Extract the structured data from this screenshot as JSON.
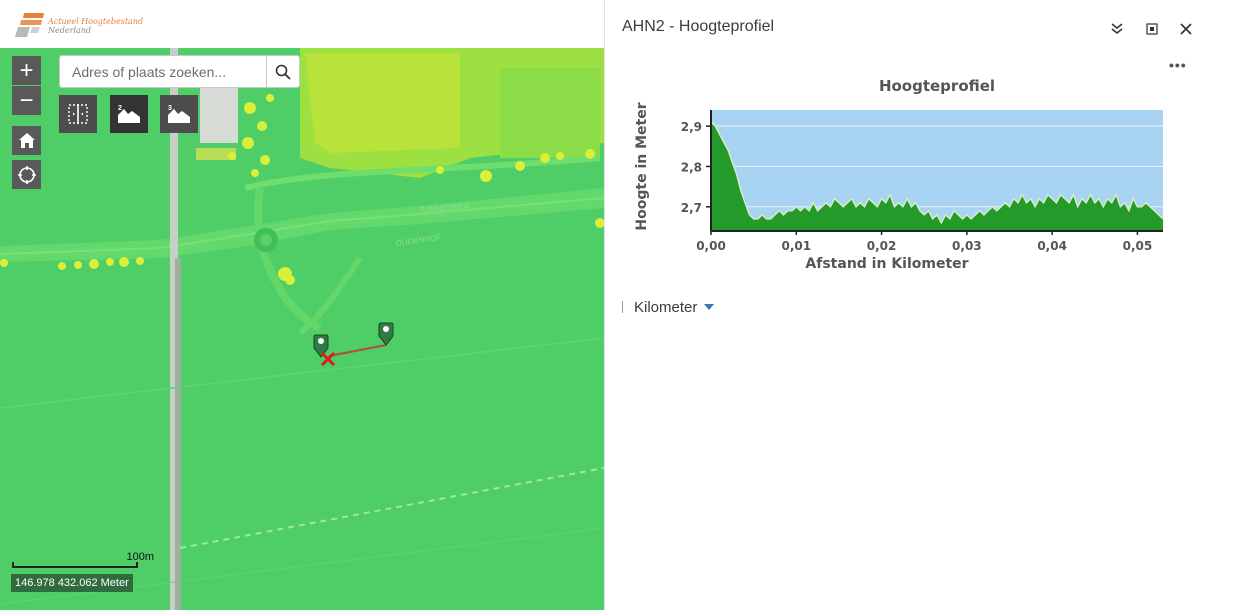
{
  "header": {
    "logo_line1": "Actueel Hoogtebestand",
    "logo_line2": "Nederland"
  },
  "map": {
    "zoom_in_label": "+",
    "zoom_out_label": "−",
    "search": {
      "placeholder": "Adres of plaats zoeken...",
      "value": ""
    },
    "tools": {
      "profile2_badge": "2",
      "profile3_badge": "3"
    },
    "street_labels": [
      "TUNNELWEG",
      "OUDENHOF"
    ],
    "scalebar_label": "100m",
    "coordinates": "146.978 432.062 Meter",
    "icons": [
      "plus-icon",
      "minus-icon",
      "home-icon",
      "locate-icon",
      "search-icon",
      "swipe-icon",
      "profile-2d-icon",
      "profile-3d-icon",
      "location-pin-icon",
      "x-marker-icon"
    ]
  },
  "panel": {
    "title": "AHN2 - Hoogteprofiel",
    "more_label": "•••",
    "unit_value": "Kilometer",
    "colors": {
      "fill": "#239a2a",
      "sky": "#a9d3f2",
      "line": "#d6f0c2"
    }
  },
  "chart_data": {
    "type": "area",
    "title": "Hoogteprofiel",
    "xlabel": "Afstand in Kilometer",
    "ylabel": "Hoogte in Meter",
    "xlim": [
      0,
      0.053
    ],
    "ylim": [
      2.64,
      2.94
    ],
    "x_ticks": [
      0.0,
      0.01,
      0.02,
      0.03,
      0.04,
      0.05
    ],
    "x_tick_labels": [
      "0,00",
      "0,01",
      "0,02",
      "0,03",
      "0,04",
      "0,05"
    ],
    "y_ticks": [
      2.7,
      2.8,
      2.9
    ],
    "y_tick_labels": [
      "2,7",
      "2,8",
      "2,9"
    ],
    "grid": true,
    "x": [
      0.0,
      0.0005,
      0.001,
      0.0015,
      0.002,
      0.0025,
      0.003,
      0.0035,
      0.004,
      0.0045,
      0.005,
      0.0055,
      0.006,
      0.0065,
      0.007,
      0.0075,
      0.008,
      0.0085,
      0.009,
      0.0095,
      0.01,
      0.0105,
      0.011,
      0.0115,
      0.012,
      0.0125,
      0.013,
      0.0135,
      0.014,
      0.0145,
      0.015,
      0.0155,
      0.016,
      0.0165,
      0.017,
      0.0175,
      0.018,
      0.0185,
      0.019,
      0.0195,
      0.02,
      0.0205,
      0.021,
      0.0215,
      0.022,
      0.0225,
      0.023,
      0.0235,
      0.024,
      0.0245,
      0.025,
      0.0255,
      0.026,
      0.0265,
      0.027,
      0.0275,
      0.028,
      0.0285,
      0.029,
      0.0295,
      0.03,
      0.0305,
      0.031,
      0.0315,
      0.032,
      0.0325,
      0.033,
      0.0335,
      0.034,
      0.0345,
      0.035,
      0.0355,
      0.036,
      0.0365,
      0.037,
      0.0375,
      0.038,
      0.0385,
      0.039,
      0.0395,
      0.04,
      0.0405,
      0.041,
      0.0415,
      0.042,
      0.0425,
      0.043,
      0.0435,
      0.044,
      0.0445,
      0.045,
      0.0455,
      0.046,
      0.0465,
      0.047,
      0.0475,
      0.048,
      0.0485,
      0.049,
      0.0495,
      0.05,
      0.0505,
      0.051,
      0.0515,
      0.052,
      0.0525,
      0.053
    ],
    "series": [
      {
        "values": [
          2.91,
          2.9,
          2.88,
          2.86,
          2.84,
          2.81,
          2.78,
          2.74,
          2.71,
          2.68,
          2.67,
          2.67,
          2.68,
          2.67,
          2.67,
          2.68,
          2.69,
          2.68,
          2.69,
          2.69,
          2.7,
          2.69,
          2.7,
          2.69,
          2.71,
          2.69,
          2.7,
          2.71,
          2.7,
          2.72,
          2.71,
          2.7,
          2.71,
          2.72,
          2.7,
          2.71,
          2.7,
          2.72,
          2.71,
          2.7,
          2.72,
          2.71,
          2.73,
          2.7,
          2.71,
          2.7,
          2.72,
          2.7,
          2.71,
          2.69,
          2.68,
          2.69,
          2.67,
          2.68,
          2.66,
          2.68,
          2.67,
          2.69,
          2.68,
          2.67,
          2.68,
          2.67,
          2.68,
          2.69,
          2.68,
          2.69,
          2.7,
          2.69,
          2.7,
          2.71,
          2.7,
          2.72,
          2.71,
          2.73,
          2.71,
          2.72,
          2.7,
          2.72,
          2.71,
          2.73,
          2.72,
          2.71,
          2.73,
          2.72,
          2.71,
          2.73,
          2.7,
          2.72,
          2.71,
          2.73,
          2.71,
          2.72,
          2.7,
          2.72,
          2.71,
          2.73,
          2.7,
          2.71,
          2.69,
          2.72,
          2.7,
          2.7,
          2.71,
          2.7,
          2.69,
          2.68,
          2.67
        ]
      }
    ]
  }
}
